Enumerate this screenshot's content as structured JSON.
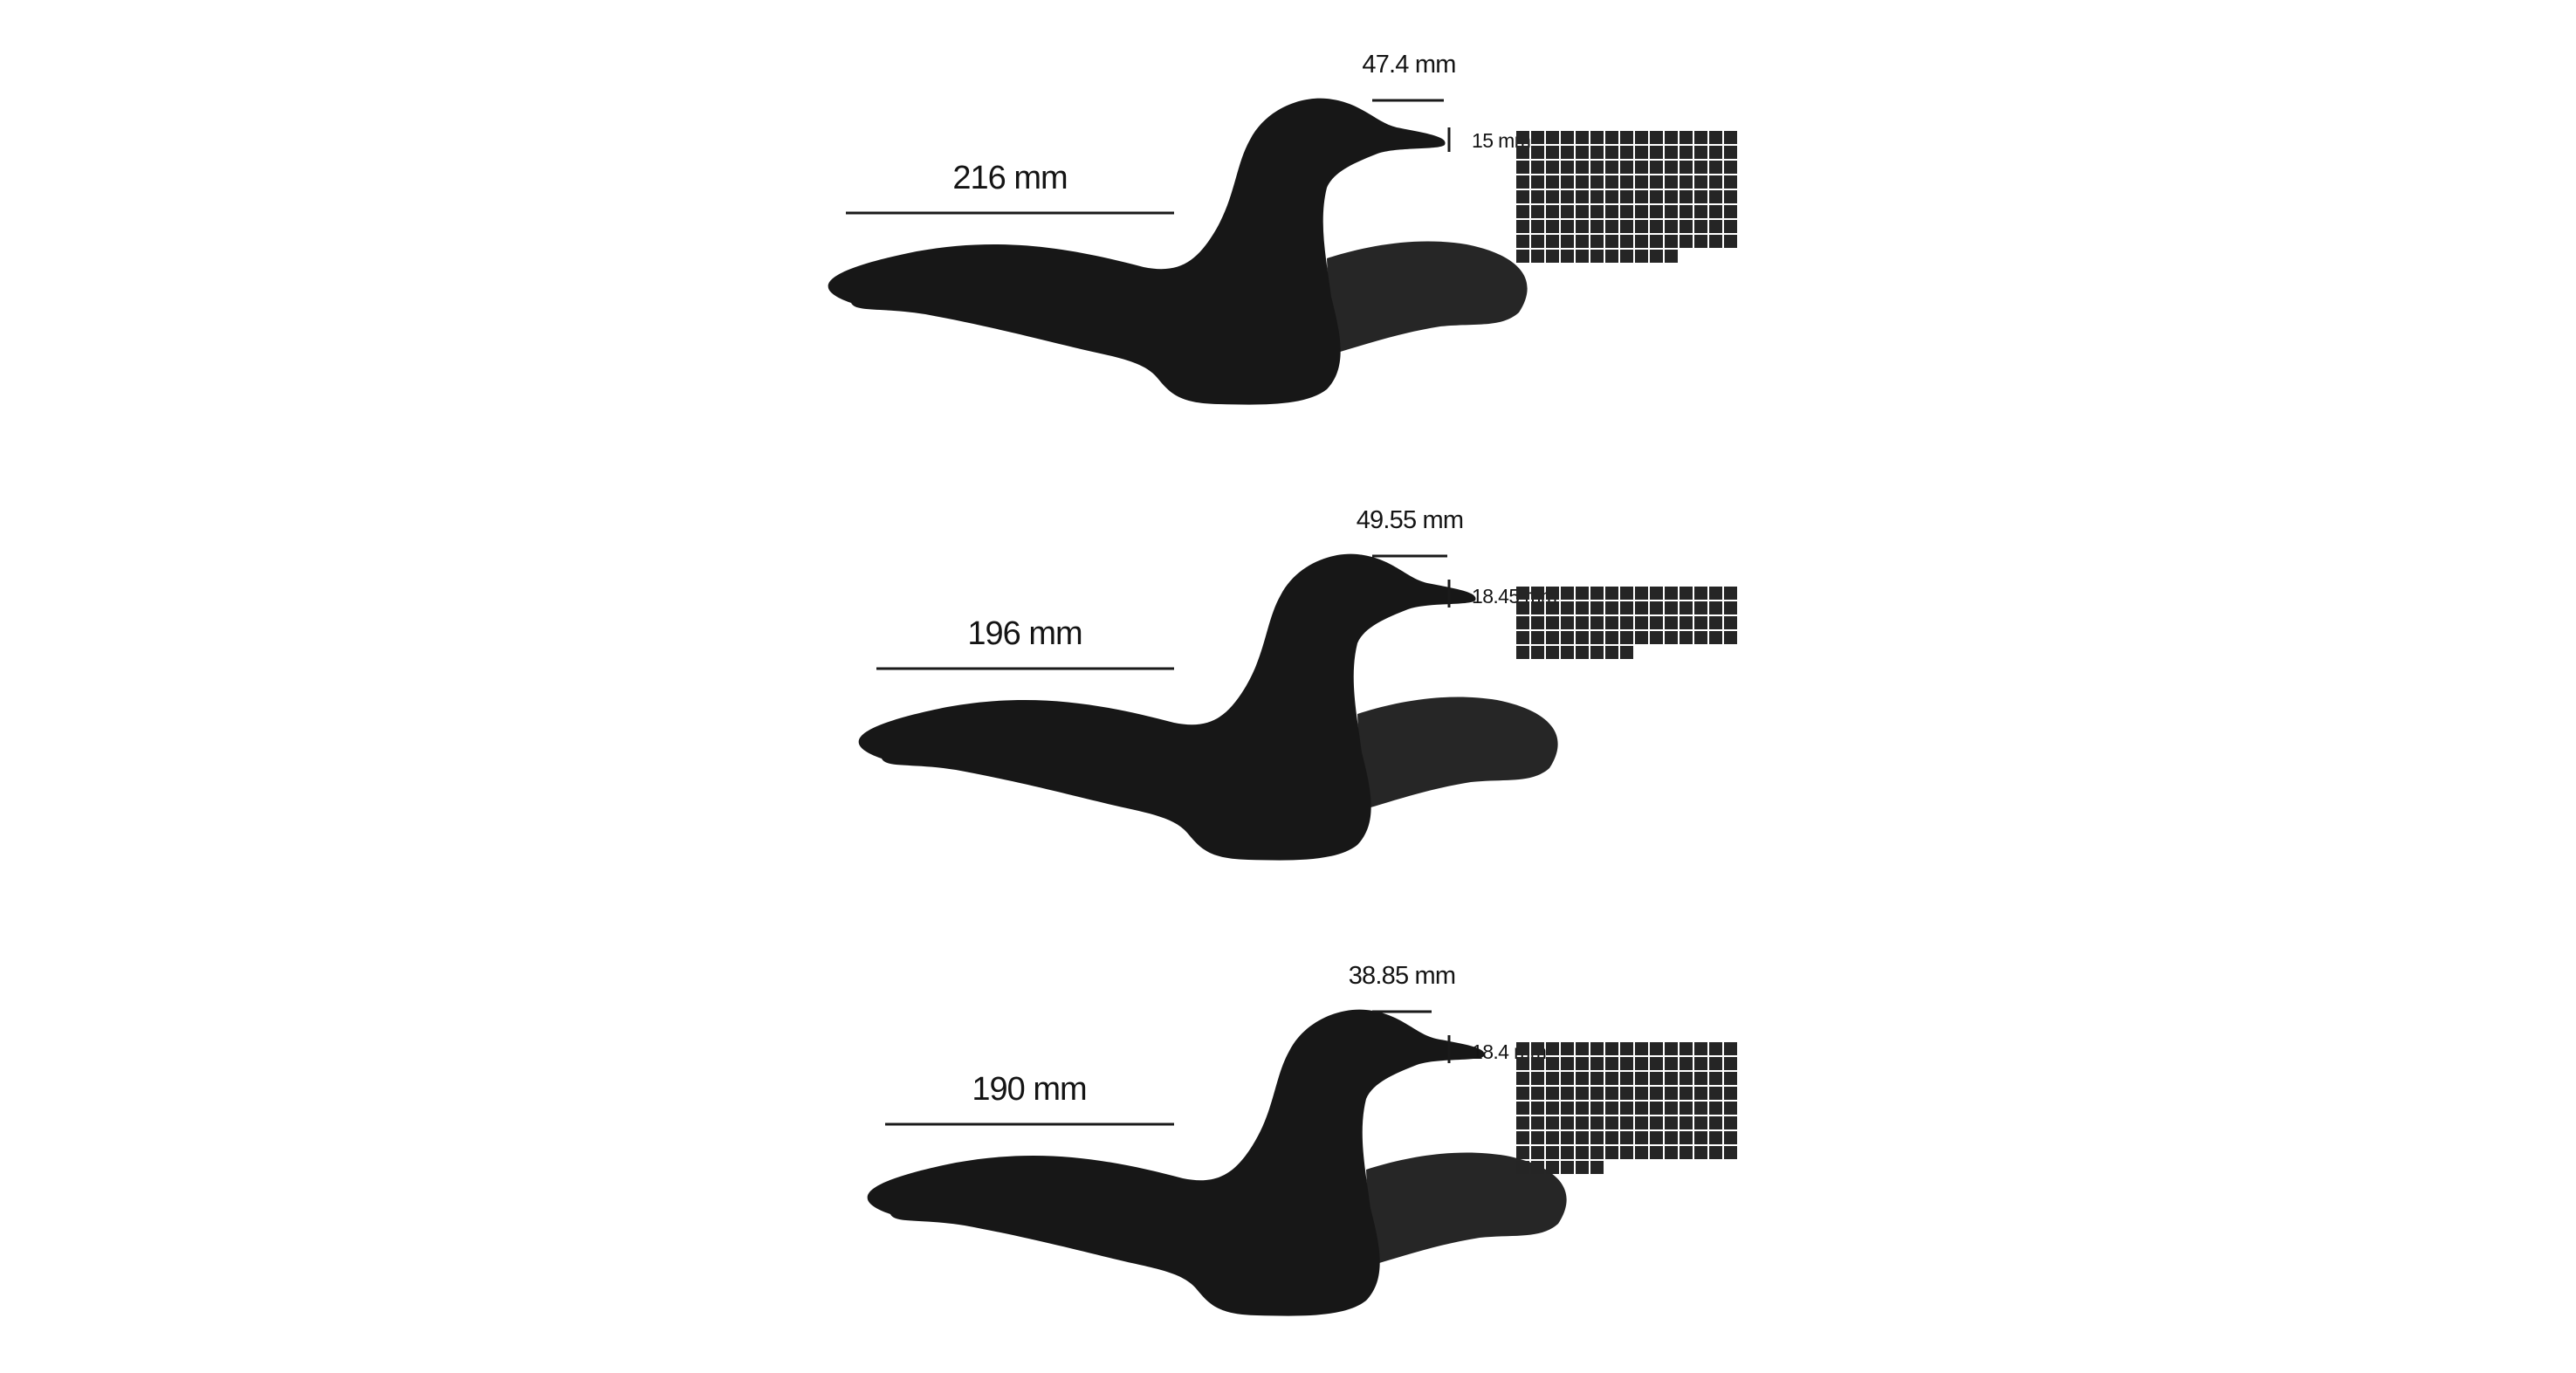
{
  "colors": {
    "background": "#ffffff",
    "body": "#171717",
    "far_wing": "#262626",
    "line": "#1a1a1a",
    "grid_cell": "#252525"
  },
  "birds": [
    {
      "body_length_label": "216 mm",
      "body_length_mm": 216,
      "bill_length_label": "47.4 mm",
      "bill_length_mm": 47.4,
      "bill_depth_label": "15 mm",
      "bill_depth_mm": 15,
      "grid_count": 131
    },
    {
      "body_length_label": "196 mm",
      "body_length_mm": 196,
      "bill_length_label": "49.55 mm",
      "bill_length_mm": 49.55,
      "bill_depth_label": "18.45 mm",
      "bill_depth_mm": 18.45,
      "grid_count": 68
    },
    {
      "body_length_label": "190 mm",
      "body_length_mm": 190,
      "bill_length_label": "38.85 mm",
      "bill_length_mm": 38.85,
      "bill_depth_label": "18.4 mm",
      "bill_depth_mm": 18.4,
      "grid_count": 126
    }
  ]
}
